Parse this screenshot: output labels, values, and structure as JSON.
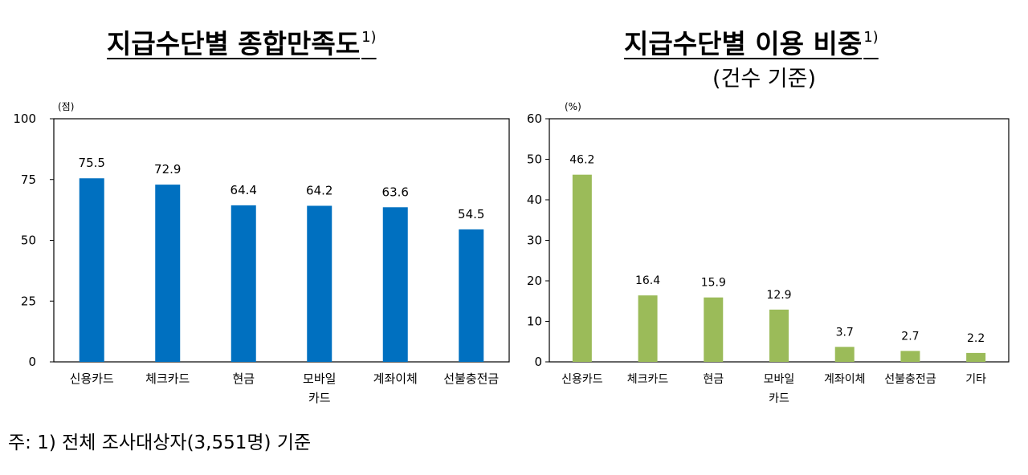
{
  "footnote": "주: 1) 전체 조사대상자(3,551명) 기준",
  "chart_data": [
    {
      "type": "bar",
      "title": "지급수단별 종합만족도",
      "title_sup": "1)",
      "subtitle": "",
      "unit": "(점)",
      "ylim": [
        0,
        100
      ],
      "yticks": [
        0,
        25,
        50,
        75,
        100
      ],
      "categories": [
        [
          "신용카드"
        ],
        [
          "체크카드"
        ],
        [
          "현금"
        ],
        [
          "모바일",
          "카드"
        ],
        [
          "계좌이체"
        ],
        [
          "선불충전금"
        ]
      ],
      "values": [
        75.5,
        72.9,
        64.4,
        64.2,
        63.6,
        54.5
      ],
      "value_labels": [
        "75.5",
        "72.9",
        "64.4",
        "64.2",
        "63.6",
        "54.5"
      ],
      "bar_color": "#0070C0",
      "grid": false
    },
    {
      "type": "bar",
      "title": "지급수단별 이용 비중",
      "title_sup": "1)",
      "subtitle": "(건수 기준)",
      "unit": "(%)",
      "ylim": [
        0,
        60
      ],
      "yticks": [
        0,
        10,
        20,
        30,
        40,
        50,
        60
      ],
      "categories": [
        [
          "신용카드"
        ],
        [
          "체크카드"
        ],
        [
          "현금"
        ],
        [
          "모바일",
          "카드"
        ],
        [
          "계좌이체"
        ],
        [
          "선불충전금"
        ],
        [
          "기타"
        ]
      ],
      "values": [
        46.2,
        16.4,
        15.9,
        12.9,
        3.7,
        2.7,
        2.2
      ],
      "value_labels": [
        "46.2",
        "16.4",
        "15.9",
        "12.9",
        "3.7",
        "2.7",
        "2.2"
      ],
      "bar_color": "#9BBB59",
      "grid": false
    }
  ]
}
